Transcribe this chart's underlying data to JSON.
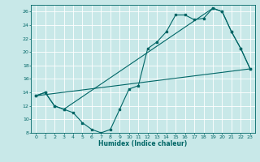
{
  "title": "",
  "xlabel": "Humidex (Indice chaleur)",
  "bg_color": "#c8e8e8",
  "grid_color": "#b8d8d8",
  "line_color": "#006666",
  "xlim": [
    -0.5,
    23.5
  ],
  "ylim": [
    8,
    27
  ],
  "xticks": [
    0,
    1,
    2,
    3,
    4,
    5,
    6,
    7,
    8,
    9,
    10,
    11,
    12,
    13,
    14,
    15,
    16,
    17,
    18,
    19,
    20,
    21,
    22,
    23
  ],
  "yticks": [
    8,
    10,
    12,
    14,
    16,
    18,
    20,
    22,
    24,
    26
  ],
  "line1_x": [
    0,
    1,
    2,
    3,
    4,
    5,
    6,
    7,
    8,
    9,
    10,
    11,
    12,
    13,
    14,
    15,
    16,
    17,
    18,
    19,
    20,
    21,
    22,
    23
  ],
  "line1_y": [
    13.5,
    14.0,
    12.0,
    11.5,
    11.0,
    9.5,
    8.5,
    8.0,
    8.5,
    11.5,
    14.5,
    15.0,
    20.5,
    21.5,
    23.0,
    25.5,
    25.5,
    24.8,
    25.0,
    26.5,
    26.0,
    23.0,
    20.5,
    17.5
  ],
  "line2_x": [
    0,
    1,
    2,
    3,
    19,
    20,
    21,
    22,
    23
  ],
  "line2_y": [
    13.5,
    14.0,
    12.0,
    11.5,
    26.5,
    26.0,
    23.0,
    20.5,
    17.5
  ],
  "line3_x": [
    0,
    23
  ],
  "line3_y": [
    13.5,
    17.5
  ]
}
